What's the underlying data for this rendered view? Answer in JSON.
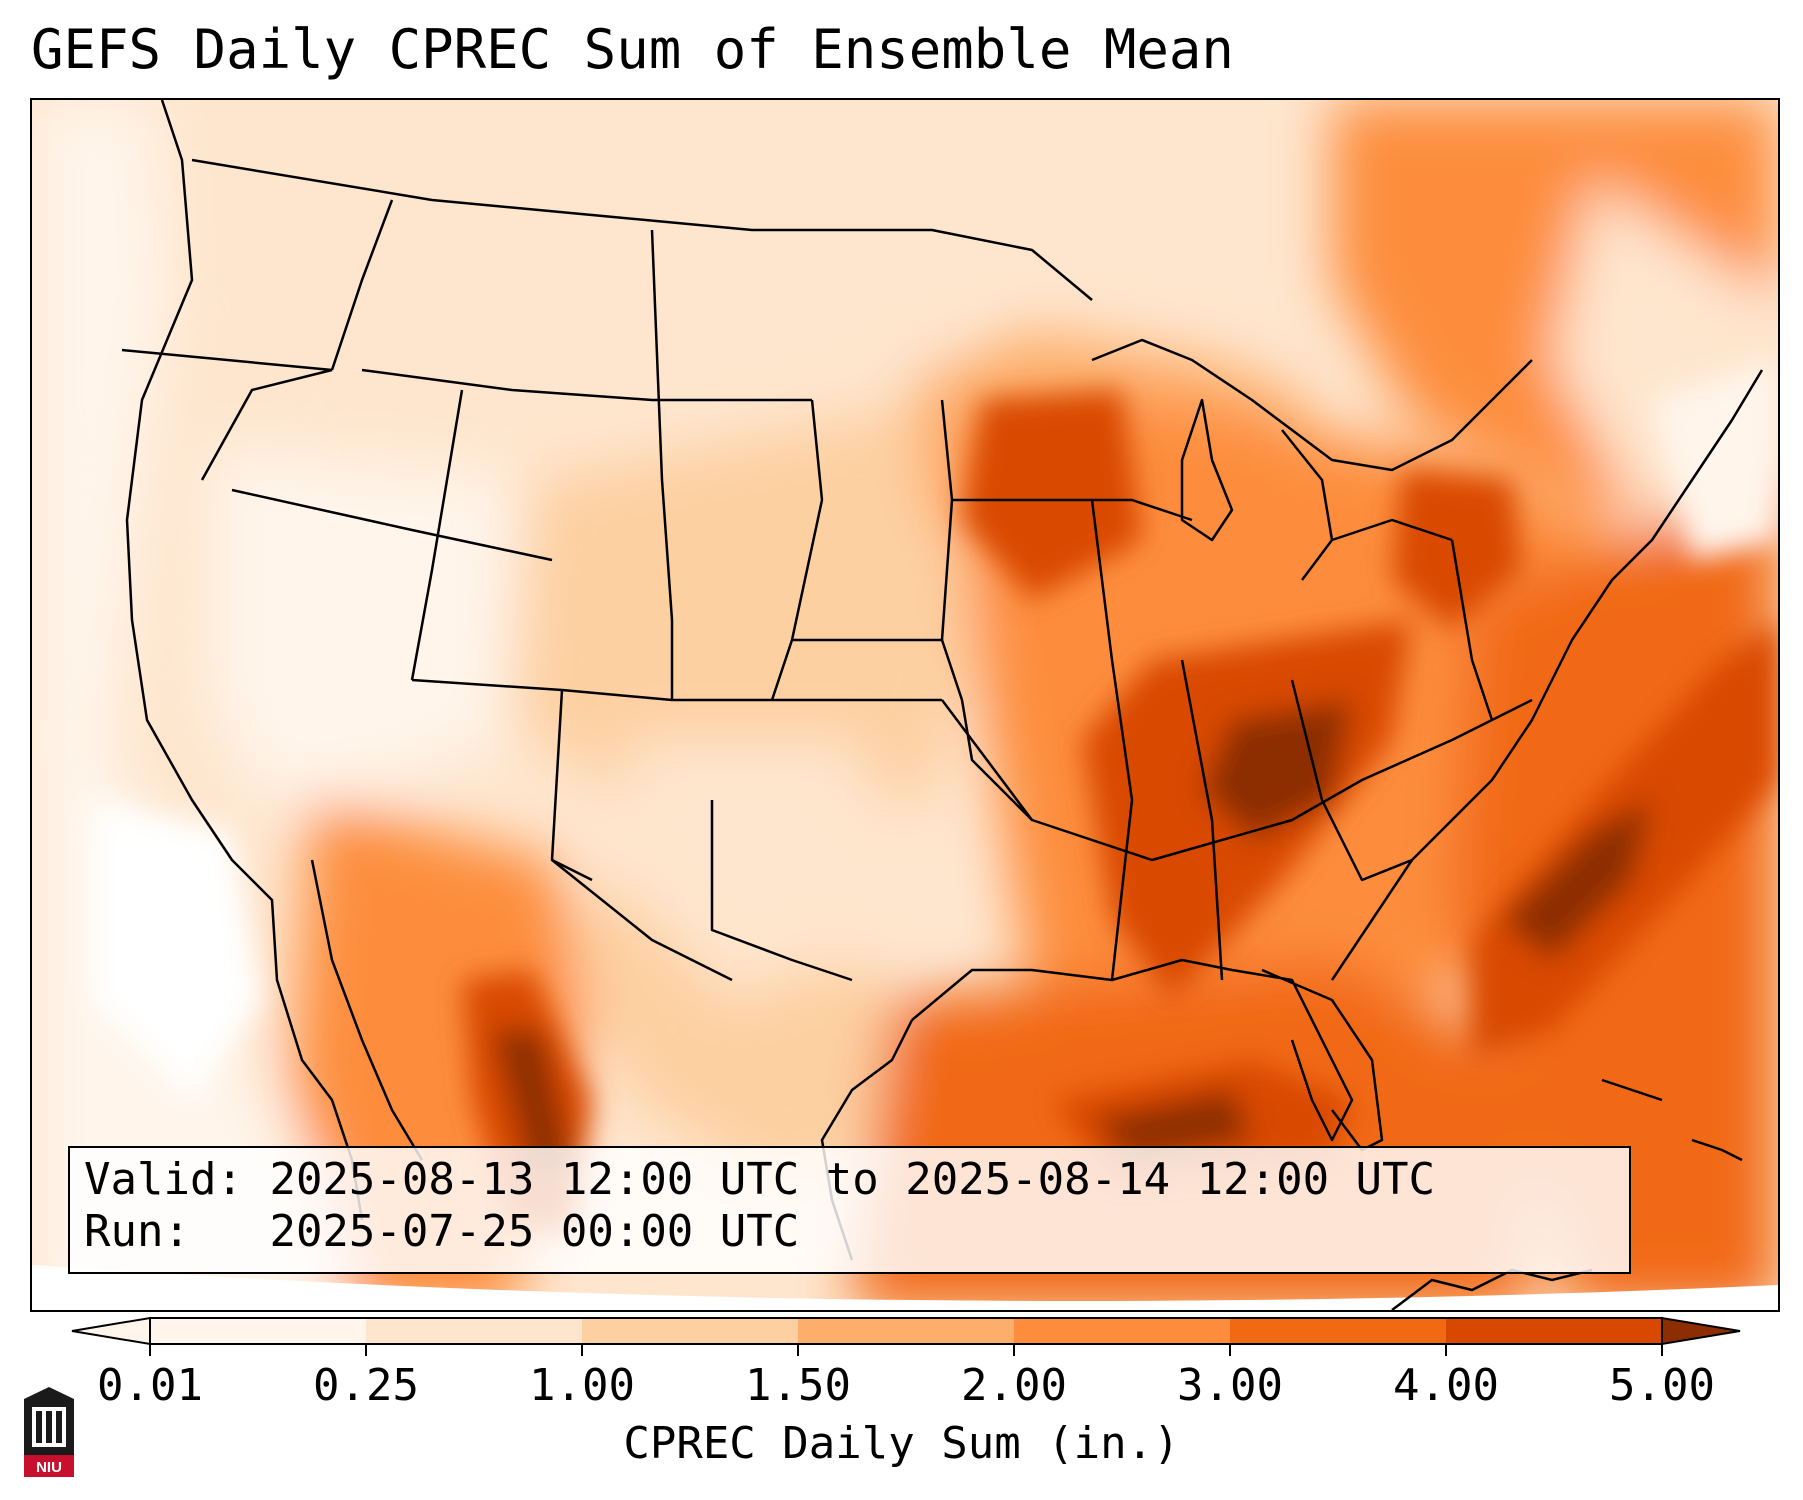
{
  "title": "GEFS Daily CPREC Sum of Ensemble Mean",
  "info": {
    "valid_label": "Valid:",
    "valid_value": "2025-08-13 12:00 UTC to 2025-08-14 12:00 UTC",
    "run_label": "Run:",
    "run_value": "2025-07-25 00:00 UTC"
  },
  "colorbar": {
    "label": "CPREC Daily Sum (in.)",
    "ticks": [
      "0.01",
      "0.25",
      "1.00",
      "1.50",
      "2.00",
      "3.00",
      "4.00",
      "5.00"
    ],
    "colors": [
      "#fff5eb",
      "#fee6ce",
      "#fdd0a2",
      "#fdae6b",
      "#fd8d3c",
      "#f16913",
      "#d94801",
      "#8c2d04"
    ],
    "extend": "both"
  },
  "logo": {
    "text": "NIU"
  },
  "chart_data": {
    "type": "heatmap",
    "title": "GEFS Daily CPREC Sum of Ensemble Mean",
    "legend_label": "CPREC Daily Sum (in.)",
    "levels": [
      0.01,
      0.25,
      1.0,
      1.5,
      2.0,
      3.0,
      4.0,
      5.0
    ]
  }
}
